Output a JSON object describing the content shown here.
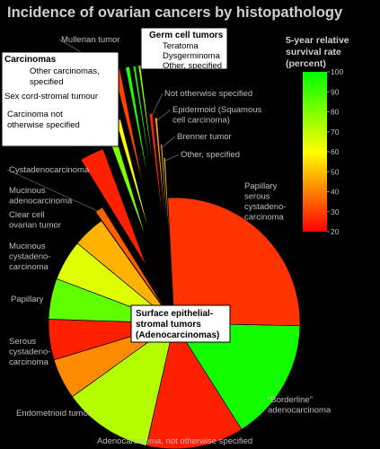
{
  "chart_data": {
    "type": "pie",
    "title": "Incidence of ovarian cancers by histopathology",
    "colorbar": {
      "title_lines": [
        "5-year relative",
        "survival rate",
        "(percent)"
      ],
      "min": 20,
      "max": 100,
      "ticks": [
        "20",
        "30",
        "40",
        "50",
        "60",
        "70",
        "80",
        "90",
        "100"
      ]
    },
    "center_label_lines": [
      "Surface epithelial-",
      "stromal tumors",
      "(Adenocarcinomas)"
    ],
    "slices": [
      {
        "label_lines": [
          "Papillary",
          "serous",
          "cystadeno-",
          "carcinoma"
        ],
        "value": 25,
        "survival": 28
      },
      {
        "label_lines": [
          "\"Borderline\"",
          "adenocarcinoma"
        ],
        "value": 15,
        "survival": 97
      },
      {
        "label_lines": [
          "Adenocarcinoma, not otherwise specified"
        ],
        "value": 12,
        "survival": 25
      },
      {
        "label_lines": [
          "Endometrioid tumor"
        ],
        "value": 11,
        "survival": 72
      },
      {
        "label_lines": [
          "Serous",
          "cystadeno-",
          "carcinoma"
        ],
        "value": 5,
        "survival": 42
      },
      {
        "label_lines": [
          "Papillary"
        ],
        "value": 5,
        "survival": 25
      },
      {
        "label_lines": [
          "Mucinous",
          "cystadeno-",
          "carcinoma"
        ],
        "value": 5,
        "survival": 85
      },
      {
        "label_lines": [
          "Clear cell",
          "ovarian tumor"
        ],
        "value": 5,
        "survival": 65
      },
      {
        "label_lines": [
          "Mucinous",
          "adenocarcinoma"
        ],
        "value": 4,
        "survival": 48
      },
      {
        "label_lines": [
          "Cystadenocarcinoma"
        ],
        "value": 1.0,
        "survival": 35
      },
      {
        "label_lines": [
          "Carcinoma not",
          "otherwise specified"
        ],
        "value": 3,
        "survival": 25
      },
      {
        "label_lines": [
          "Sex cord-stromal tumour"
        ],
        "value": 1.0,
        "survival": 80
      },
      {
        "label_lines": [
          "Other carcinomas,",
          "specified"
        ],
        "value": 0.6,
        "survival": 60
      },
      {
        "label_lines": [
          "Mullerian tumor"
        ],
        "value": 0.8,
        "survival": 30
      },
      {
        "label_lines": [
          "Teratoma"
        ],
        "value": 0.5,
        "survival": 95
      },
      {
        "label_lines": [
          "Dysgerminoma"
        ],
        "value": 0.3,
        "survival": 97
      },
      {
        "label_lines": [
          "Other, specified"
        ],
        "value": 0.3,
        "survival": 80
      },
      {
        "label_lines": [
          "Not otherwise specified"
        ],
        "value": 0.4,
        "survival": 25
      },
      {
        "label_lines": [
          "Epidermoid (Squamous",
          "cell carcinoma)"
        ],
        "value": 0.3,
        "survival": 45
      },
      {
        "label_lines": [
          "Brenner tumor"
        ],
        "value": 0.2,
        "survival": 50
      },
      {
        "label_lines": [
          "Other, specified"
        ],
        "value": 0.2,
        "survival": 55
      }
    ],
    "group_boxes": [
      {
        "title": "Carcinomas",
        "items": [
          "Other carcinomas,",
          "specified",
          "Sex cord-stromal tumour",
          "Carcinoma not",
          "otherwise specified"
        ]
      },
      {
        "title": "Germ cell tumors",
        "items": [
          "Teratoma",
          "Dysgerminoma",
          "Other, specified"
        ]
      }
    ]
  }
}
